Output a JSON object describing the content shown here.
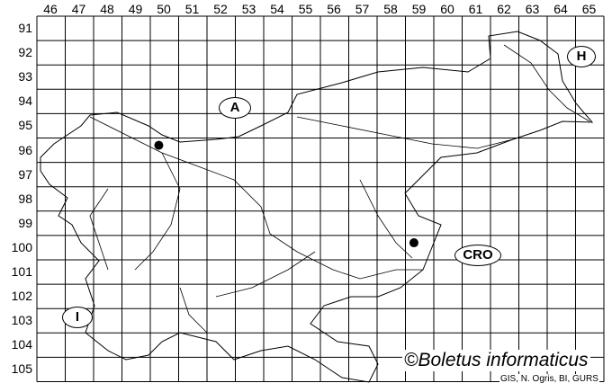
{
  "map": {
    "columns": [
      "46",
      "47",
      "48",
      "49",
      "50",
      "51",
      "52",
      "53",
      "54",
      "55",
      "56",
      "57",
      "58",
      "59",
      "60",
      "61",
      "62",
      "63",
      "64",
      "65"
    ],
    "rows": [
      "91",
      "92",
      "93",
      "94",
      "95",
      "96",
      "97",
      "98",
      "99",
      "100",
      "101",
      "102",
      "103",
      "104",
      "105"
    ],
    "country_labels": {
      "austria": "A",
      "hungary": "H",
      "croatia": "CRO",
      "italy": "I"
    },
    "records": [
      {
        "column": 50,
        "row": 96
      },
      {
        "column": 59,
        "row": 100
      }
    ],
    "record_color": "#000000",
    "copyright": "©Boletus informaticus",
    "credit": "GIS, N. Ogris, BI, GURS"
  }
}
